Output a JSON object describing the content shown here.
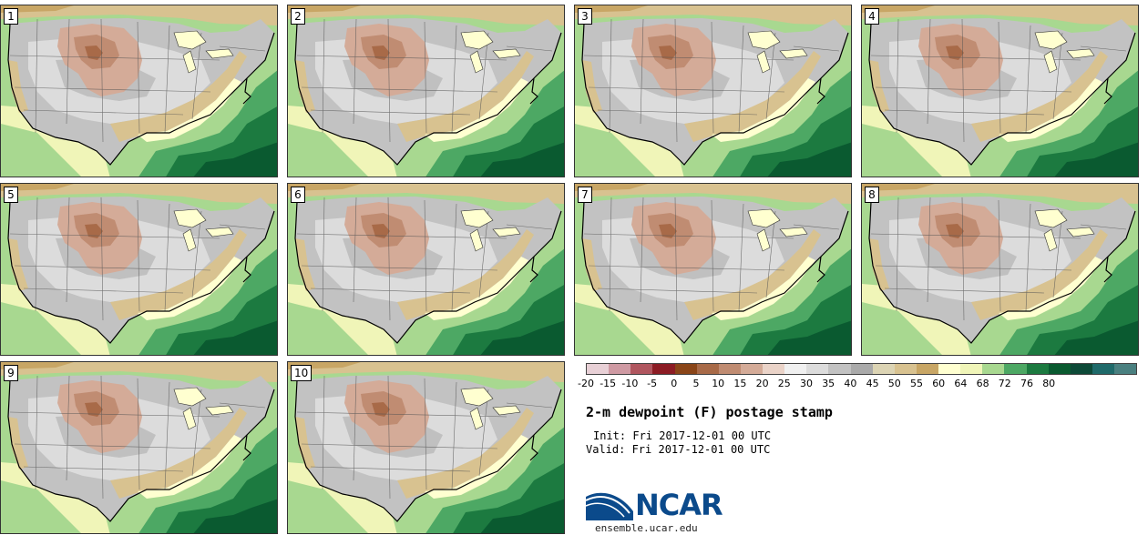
{
  "panels": [
    {
      "label": "1"
    },
    {
      "label": "2"
    },
    {
      "label": "3"
    },
    {
      "label": "4"
    },
    {
      "label": "5"
    },
    {
      "label": "6"
    },
    {
      "label": "7"
    },
    {
      "label": "8"
    },
    {
      "label": "9"
    },
    {
      "label": "10"
    }
  ],
  "colorbar": {
    "labels": [
      "-20",
      "-15",
      "-10",
      "-5",
      "0",
      "5",
      "10",
      "15",
      "20",
      "25",
      "30",
      "35",
      "40",
      "45",
      "50",
      "55",
      "60",
      "64",
      "68",
      "72",
      "76",
      "80"
    ],
    "colors": [
      "#e8d0d6",
      "#cf9aa3",
      "#b0565f",
      "#8c1c24",
      "#8a4518",
      "#a86a48",
      "#c08c72",
      "#d4ab98",
      "#ead3c8",
      "#f0f0f0",
      "#dcdcdc",
      "#c2c2c2",
      "#aaaaaa",
      "#dcd4b4",
      "#d8c290",
      "#c8a665",
      "#ffffd0",
      "#f0f5b8",
      "#a8d890",
      "#4da864",
      "#1c7a40",
      "#0a5a30",
      "#0d4a38",
      "#1f6a6a",
      "#4a8080"
    ]
  },
  "title": "2-m dewpoint (F) postage stamp",
  "init_text": "Init: Fri 2017-12-01 00 UTC",
  "valid_text": "Valid: Fri 2017-12-01 00 UTC",
  "logo": {
    "text": "NCAR",
    "url": "ensemble.ucar.edu"
  }
}
